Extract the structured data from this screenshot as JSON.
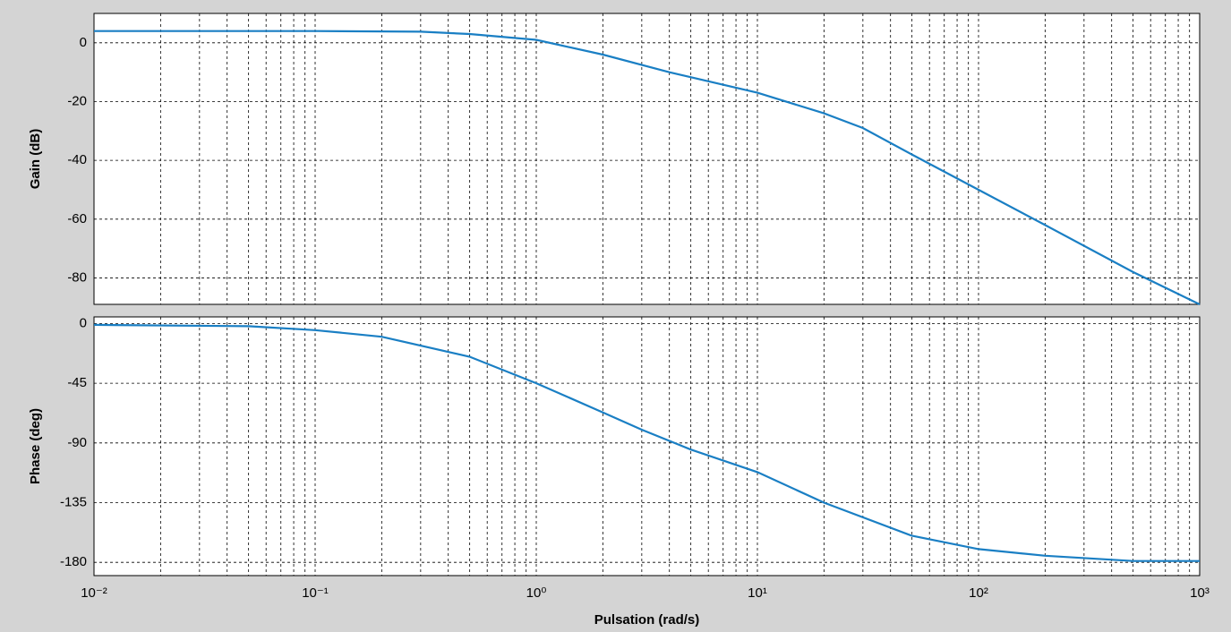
{
  "chart_data": [
    {
      "type": "line",
      "xscale": "log",
      "ylabel": "Gain (dB)",
      "xlim": [
        0.01,
        1000
      ],
      "xticks": [
        0.01,
        0.1,
        1,
        10,
        100,
        1000
      ],
      "ylim": [
        -89,
        10
      ],
      "yticks": [
        0,
        -20,
        -40,
        -60,
        -80
      ],
      "grid": true,
      "minor_grid": true,
      "series": [
        {
          "color": "#1a7fc4",
          "x": [
            0.01,
            0.1,
            0.3,
            0.5,
            1,
            2,
            4,
            10,
            20,
            30,
            50,
            100,
            200,
            500,
            1000
          ],
          "values": [
            4,
            4,
            3.8,
            3,
            1,
            -4,
            -10,
            -17,
            -24,
            -29,
            -38,
            -50,
            -62,
            -78,
            -89
          ]
        }
      ]
    },
    {
      "type": "line",
      "xscale": "log",
      "ylabel": "Phase (deg)",
      "xlabel": "Pulsation (rad/s)",
      "xlim": [
        0.01,
        1000
      ],
      "xticks": [
        {
          "value": 0.01,
          "label": "10⁻²"
        },
        {
          "value": 0.1,
          "label": "10⁻¹"
        },
        {
          "value": 1,
          "label": "10⁰"
        },
        {
          "value": 10,
          "label": "10¹"
        },
        {
          "value": 100,
          "label": "10²"
        },
        {
          "value": 1000,
          "label": "10³"
        }
      ],
      "ylim": [
        -190,
        5
      ],
      "yticks": [
        0,
        -45,
        -90,
        -135,
        -180
      ],
      "grid": true,
      "minor_grid": true,
      "series": [
        {
          "color": "#1a7fc4",
          "x": [
            0.01,
            0.05,
            0.1,
            0.2,
            0.5,
            1,
            2,
            3,
            5,
            10,
            20,
            50,
            100,
            200,
            500,
            1000
          ],
          "values": [
            -1,
            -2,
            -5,
            -10,
            -25,
            -45,
            -67,
            -80,
            -95,
            -112,
            -135,
            -160,
            -170,
            -175,
            -179,
            -179
          ]
        }
      ]
    }
  ]
}
